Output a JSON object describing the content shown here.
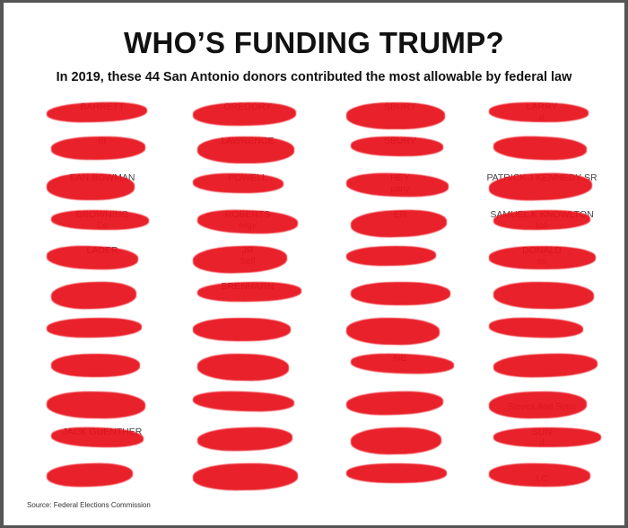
{
  "title": "WHO’S FUNDING TRUMP?",
  "subtitle": "In 2019, these 44 San Antonio donors contributed the most allowable by federal law",
  "source": "Source: Federal Elections Commission",
  "redaction_color": "#e8111b",
  "columns": [
    [
      {
        "name": "BARRETT",
        "detail": ""
      },
      {
        "name": "III",
        "detail": ""
      },
      {
        "name": "EAN BOWMAN",
        "detail": ""
      },
      {
        "name": "BROWNING",
        "detail": "Co"
      },
      {
        "name": "LADER",
        "detail": ""
      },
      {
        "name": "",
        "detail": ""
      },
      {
        "name": "",
        "detail": ""
      },
      {
        "name": "",
        "detail": ""
      },
      {
        "name": "",
        "detail": ""
      },
      {
        "name": "JACK GUENTHER",
        "detail": ""
      },
      {
        "name": "",
        "detail": ""
      }
    ],
    [
      {
        "name": "GREGORY",
        "detail": ""
      },
      {
        "name": "LAWRENCE",
        "detail": ""
      },
      {
        "name": "POWELL",
        "detail": ""
      },
      {
        "name": "ROBERTS",
        "detail": "ergy"
      },
      {
        "name": "JR",
        "detail": "Self"
      },
      {
        "name": "BRENHARN",
        "detail": ""
      },
      {
        "name": "",
        "detail": ""
      },
      {
        "name": "",
        "detail": ""
      },
      {
        "name": "",
        "detail": ""
      },
      {
        "name": "",
        "detail": ""
      },
      {
        "name": "",
        "detail": ""
      }
    ],
    [
      {
        "name": "SBURY",
        "detail": ""
      },
      {
        "name": "SBURY",
        "detail": ""
      },
      {
        "name": "HEY",
        "detail": "pany"
      },
      {
        "name": "ER",
        "detail": ""
      },
      {
        "name": "",
        "detail": ""
      },
      {
        "name": "",
        "detail": ""
      },
      {
        "name": "",
        "detail": ""
      },
      {
        "name": "NE",
        "detail": ""
      },
      {
        "name": "",
        "detail": ""
      },
      {
        "name": "",
        "detail": ""
      },
      {
        "name": "",
        "detail": ""
      }
    ],
    [
      {
        "name": "LARRY",
        "detail": "d"
      },
      {
        "name": "",
        "detail": ""
      },
      {
        "name": "PATRICK J KENNEDY SR",
        "detail": ""
      },
      {
        "name": "SAMUEL K KNOWLTON",
        "detail": "ton"
      },
      {
        "name": "DONALD",
        "detail": "co"
      },
      {
        "name": "",
        "detail": ""
      },
      {
        "name": "",
        "detail": ""
      },
      {
        "name": "",
        "detail": ""
      },
      {
        "name": "",
        "detail": "Steves And Sons"
      },
      {
        "name": "SUN",
        "detail": "d"
      },
      {
        "name": "",
        "detail": "LC"
      }
    ]
  ]
}
